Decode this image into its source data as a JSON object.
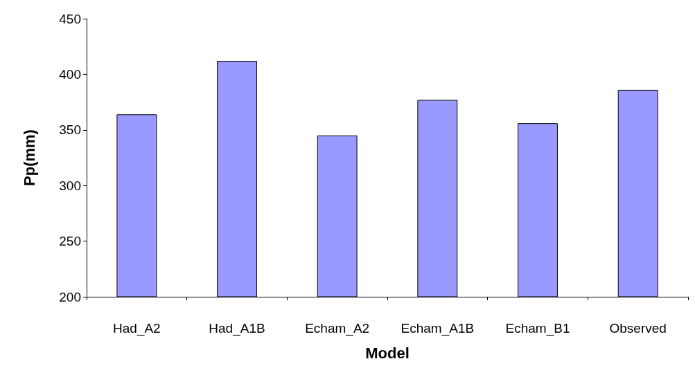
{
  "chart_data": {
    "type": "bar",
    "xlabel": "Model",
    "ylabel": "Pp(mm)",
    "categories": [
      "Had_A2",
      "Had_A1B",
      "Echam_A2",
      "Echam_A1B",
      "Echam_B1",
      "Observed"
    ],
    "values": [
      364,
      412,
      345,
      377,
      356,
      386
    ],
    "color": "#9999ff",
    "ylim": [
      200,
      450
    ],
    "yticks": [
      200,
      250,
      300,
      350,
      400,
      450
    ],
    "grid": false
  }
}
